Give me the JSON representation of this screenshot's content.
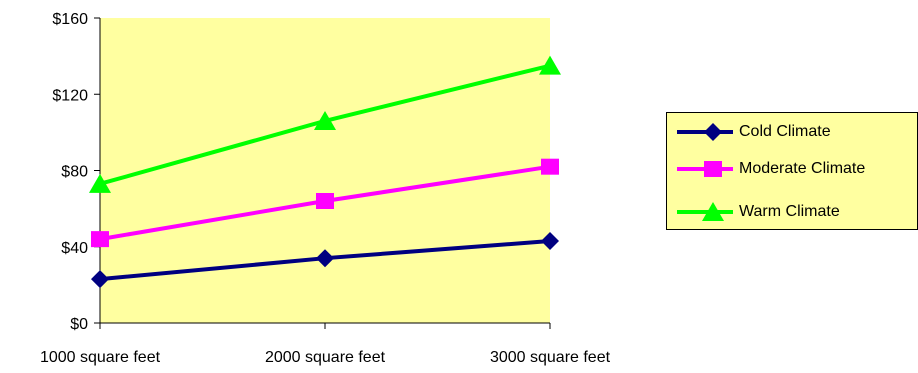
{
  "chart_data": {
    "type": "line",
    "categories": [
      "1000 square feet",
      "2000 square feet",
      "3000 square feet"
    ],
    "series": [
      {
        "name": "Cold Climate",
        "values": [
          23,
          34,
          43
        ],
        "color": "#000080",
        "marker": "diamond"
      },
      {
        "name": "Moderate Climate",
        "values": [
          44,
          64,
          82
        ],
        "color": "#ff00ff",
        "marker": "square"
      },
      {
        "name": "Warm Climate",
        "values": [
          73,
          106,
          135
        ],
        "color": "#00ff00",
        "marker": "triangle"
      }
    ],
    "ylim": [
      0,
      160
    ],
    "yticks": [
      "$0",
      "$40",
      "$80",
      "$120",
      "$160"
    ],
    "yticks_values": [
      0,
      40,
      80,
      120,
      160
    ],
    "plot_background": "#ffffa0",
    "grid": false,
    "legend_position": "right"
  }
}
